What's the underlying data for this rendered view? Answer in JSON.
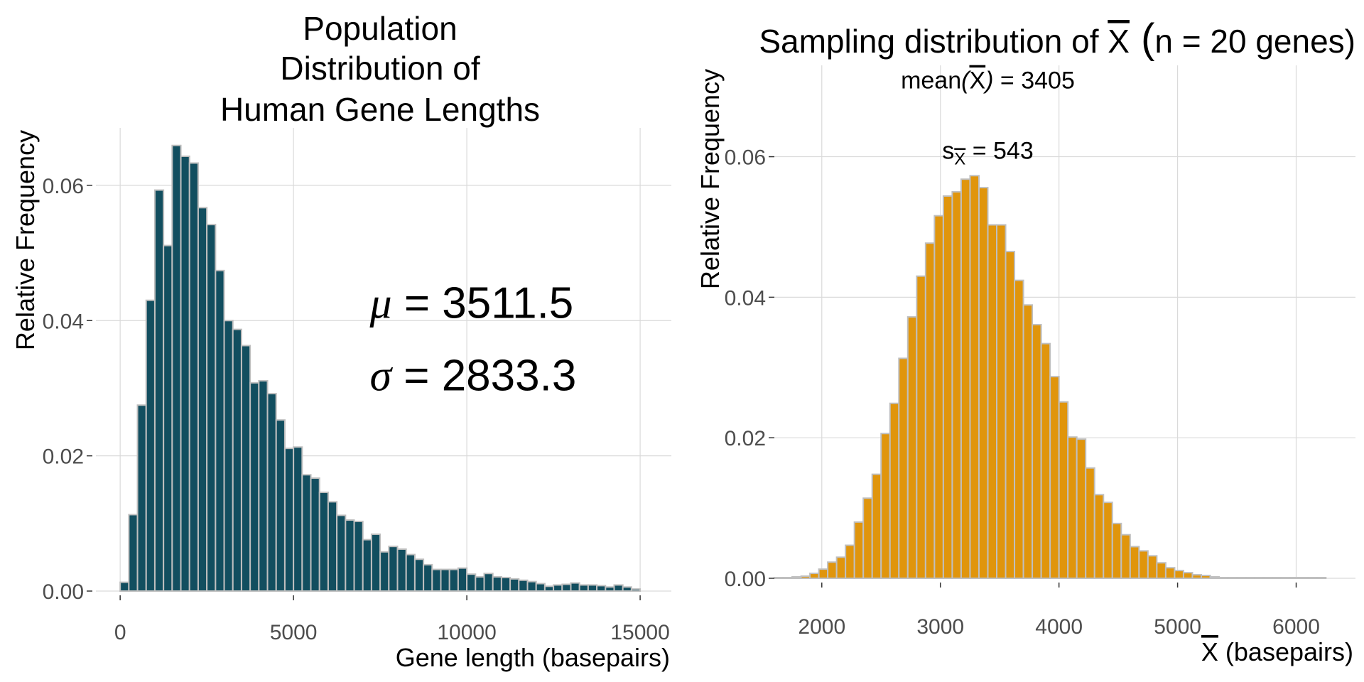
{
  "chart_data": [
    {
      "type": "bar",
      "title_lines": [
        "Population",
        "Distribution of",
        "Human Gene Lengths"
      ],
      "xlabel": "Gene length (basepairs)",
      "ylabel": "Relative Frequency",
      "xlim": [
        -700,
        15900
      ],
      "ylim": [
        0,
        0.0685
      ],
      "xticks": [
        0,
        5000,
        10000,
        15000
      ],
      "xtick_labels": [
        "0",
        "5000",
        "10000",
        "15000"
      ],
      "yticks": [
        0,
        0.02,
        0.04,
        0.06
      ],
      "ytick_labels": [
        "0.00",
        "0.02",
        "0.04",
        "0.06"
      ],
      "bin_start": 0,
      "bin_width": 250,
      "fill_color": "#124e5f",
      "edge_color": "#bfbfbf",
      "values": [
        0.0013,
        0.0113,
        0.0275,
        0.043,
        0.0593,
        0.0511,
        0.0659,
        0.0643,
        0.0633,
        0.0567,
        0.0542,
        0.0474,
        0.04,
        0.0387,
        0.0363,
        0.0308,
        0.0311,
        0.0292,
        0.0253,
        0.0211,
        0.0213,
        0.0172,
        0.0167,
        0.0146,
        0.0132,
        0.0112,
        0.0105,
        0.0103,
        0.0076,
        0.0084,
        0.0058,
        0.0066,
        0.0062,
        0.0054,
        0.0047,
        0.0039,
        0.0032,
        0.0032,
        0.0032,
        0.0034,
        0.0025,
        0.0021,
        0.0026,
        0.0021,
        0.002,
        0.0018,
        0.0016,
        0.0014,
        0.0011,
        0.0007,
        0.0009,
        0.001,
        0.0012,
        0.0009,
        0.0009,
        0.0008,
        0.0006,
        0.0009,
        0.0006,
        0.0003
      ],
      "annotations": [
        {
          "label": "μ = 3511.5",
          "symbol": "μ",
          "text": " = 3511.5",
          "x": 7200,
          "y": 0.0404
        },
        {
          "label": "σ = 2833.3",
          "symbol": "σ",
          "text": " = 2833.3",
          "x": 7200,
          "y": 0.0297
        }
      ]
    },
    {
      "type": "bar",
      "title": "Sampling distribution of X (n = 20 genes)",
      "title_parts": [
        "Sampling distribution of ",
        "X",
        " (",
        "n = 20 genes)"
      ],
      "xlabel": "X (basepairs)",
      "xlabel_parts": [
        "X",
        " (basepairs)"
      ],
      "ylabel": "Relative Frequency",
      "xlim": [
        1600,
        6500
      ],
      "ylim": [
        0,
        0.073
      ],
      "xticks": [
        2000,
        3000,
        4000,
        5000,
        6000
      ],
      "xtick_labels": [
        "2000",
        "3000",
        "4000",
        "5000",
        "6000"
      ],
      "yticks": [
        0,
        0.02,
        0.04,
        0.06
      ],
      "ytick_labels": [
        "0.00",
        "0.02",
        "0.04",
        "0.06"
      ],
      "bin_start": 1600,
      "bin_width": 75,
      "fill_color": "#e0950c",
      "edge_color": "#bfbfbf",
      "values": [
        0.0001,
        0.0001,
        0.0002,
        0.0003,
        0.0007,
        0.0013,
        0.0023,
        0.003,
        0.0047,
        0.008,
        0.0114,
        0.0148,
        0.0206,
        0.0249,
        0.0313,
        0.0372,
        0.043,
        0.0477,
        0.0516,
        0.0544,
        0.055,
        0.0568,
        0.0573,
        0.0556,
        0.0503,
        0.0503,
        0.0465,
        0.0424,
        0.0389,
        0.0361,
        0.0334,
        0.0287,
        0.0251,
        0.0201,
        0.0198,
        0.0157,
        0.0119,
        0.0108,
        0.0078,
        0.0062,
        0.0045,
        0.0039,
        0.0032,
        0.0022,
        0.0015,
        0.0011,
        0.0008,
        0.0005,
        0.0004,
        0.0002,
        0.0001,
        0.0001,
        0.0001,
        0.0001,
        0.0001,
        0.0001,
        0.0001,
        0.0001,
        0.0001,
        0.0001,
        0.0001,
        0.0001
      ],
      "annotations": [
        {
          "label": "mean(X) = 3405",
          "prefix": "mean",
          "symbol": "X",
          "text": " = 3405",
          "x": 3400,
          "y": 0.0697
        },
        {
          "label": "sX = 543",
          "prefix": "s",
          "symbol": "X",
          "text": " = 543",
          "x": 3400,
          "y": 0.0597
        }
      ]
    }
  ]
}
